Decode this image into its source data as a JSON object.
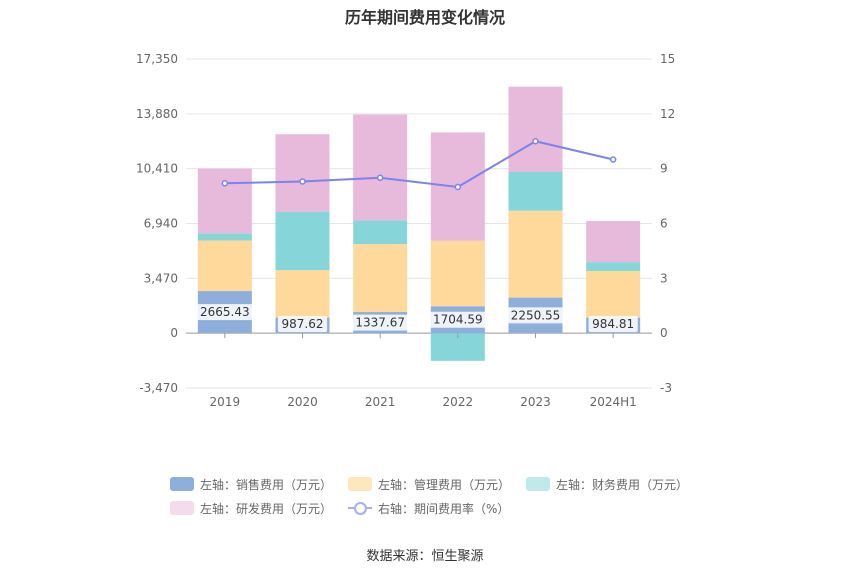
{
  "chart_data": {
    "type": "bar",
    "title": "历年期间费用变化情况",
    "categories": [
      "2019",
      "2020",
      "2021",
      "2022",
      "2023",
      "2024H1"
    ],
    "left_axis": {
      "ticks": [
        "17,350",
        "13,880",
        "10,410",
        "6,940",
        "3,470",
        "0",
        "-3,470"
      ],
      "range": [
        -3470,
        17350
      ]
    },
    "right_axis": {
      "ticks": [
        "15",
        "12",
        "9",
        "6",
        "3",
        "0",
        "-3"
      ],
      "range": [
        -3,
        15
      ]
    },
    "series": [
      {
        "name": "左轴：销售费用（万元）",
        "color": "#8eaedb",
        "values": [
          2665.43,
          987.62,
          1337.67,
          1704.59,
          2250.55,
          984.81
        ]
      },
      {
        "name": "左轴：管理费用（万元）",
        "color": "#fed99b",
        "values": [
          3200,
          3000,
          4300,
          4150,
          5500,
          2950
        ]
      },
      {
        "name": "左轴：财务费用（万元）",
        "color": "#86d5d9",
        "values": [
          450,
          3700,
          1500,
          -1750,
          2450,
          560
        ]
      },
      {
        "name": "左轴：研发费用（万元）",
        "color": "#e7b9da",
        "values": [
          4100,
          4900,
          6700,
          6850,
          5400,
          2600
        ]
      }
    ],
    "line_series": {
      "name": "右轴：期间费用率（%）",
      "color": "#7a84ee",
      "values": [
        8.2,
        8.3,
        8.5,
        8.0,
        10.5,
        9.5
      ]
    },
    "data_labels": [
      "2665.43",
      "987.62",
      "1337.67",
      "1704.59",
      "2250.55",
      "984.81"
    ],
    "legend_position": "bottom",
    "grid": true
  },
  "source": "数据来源：恒生聚源"
}
